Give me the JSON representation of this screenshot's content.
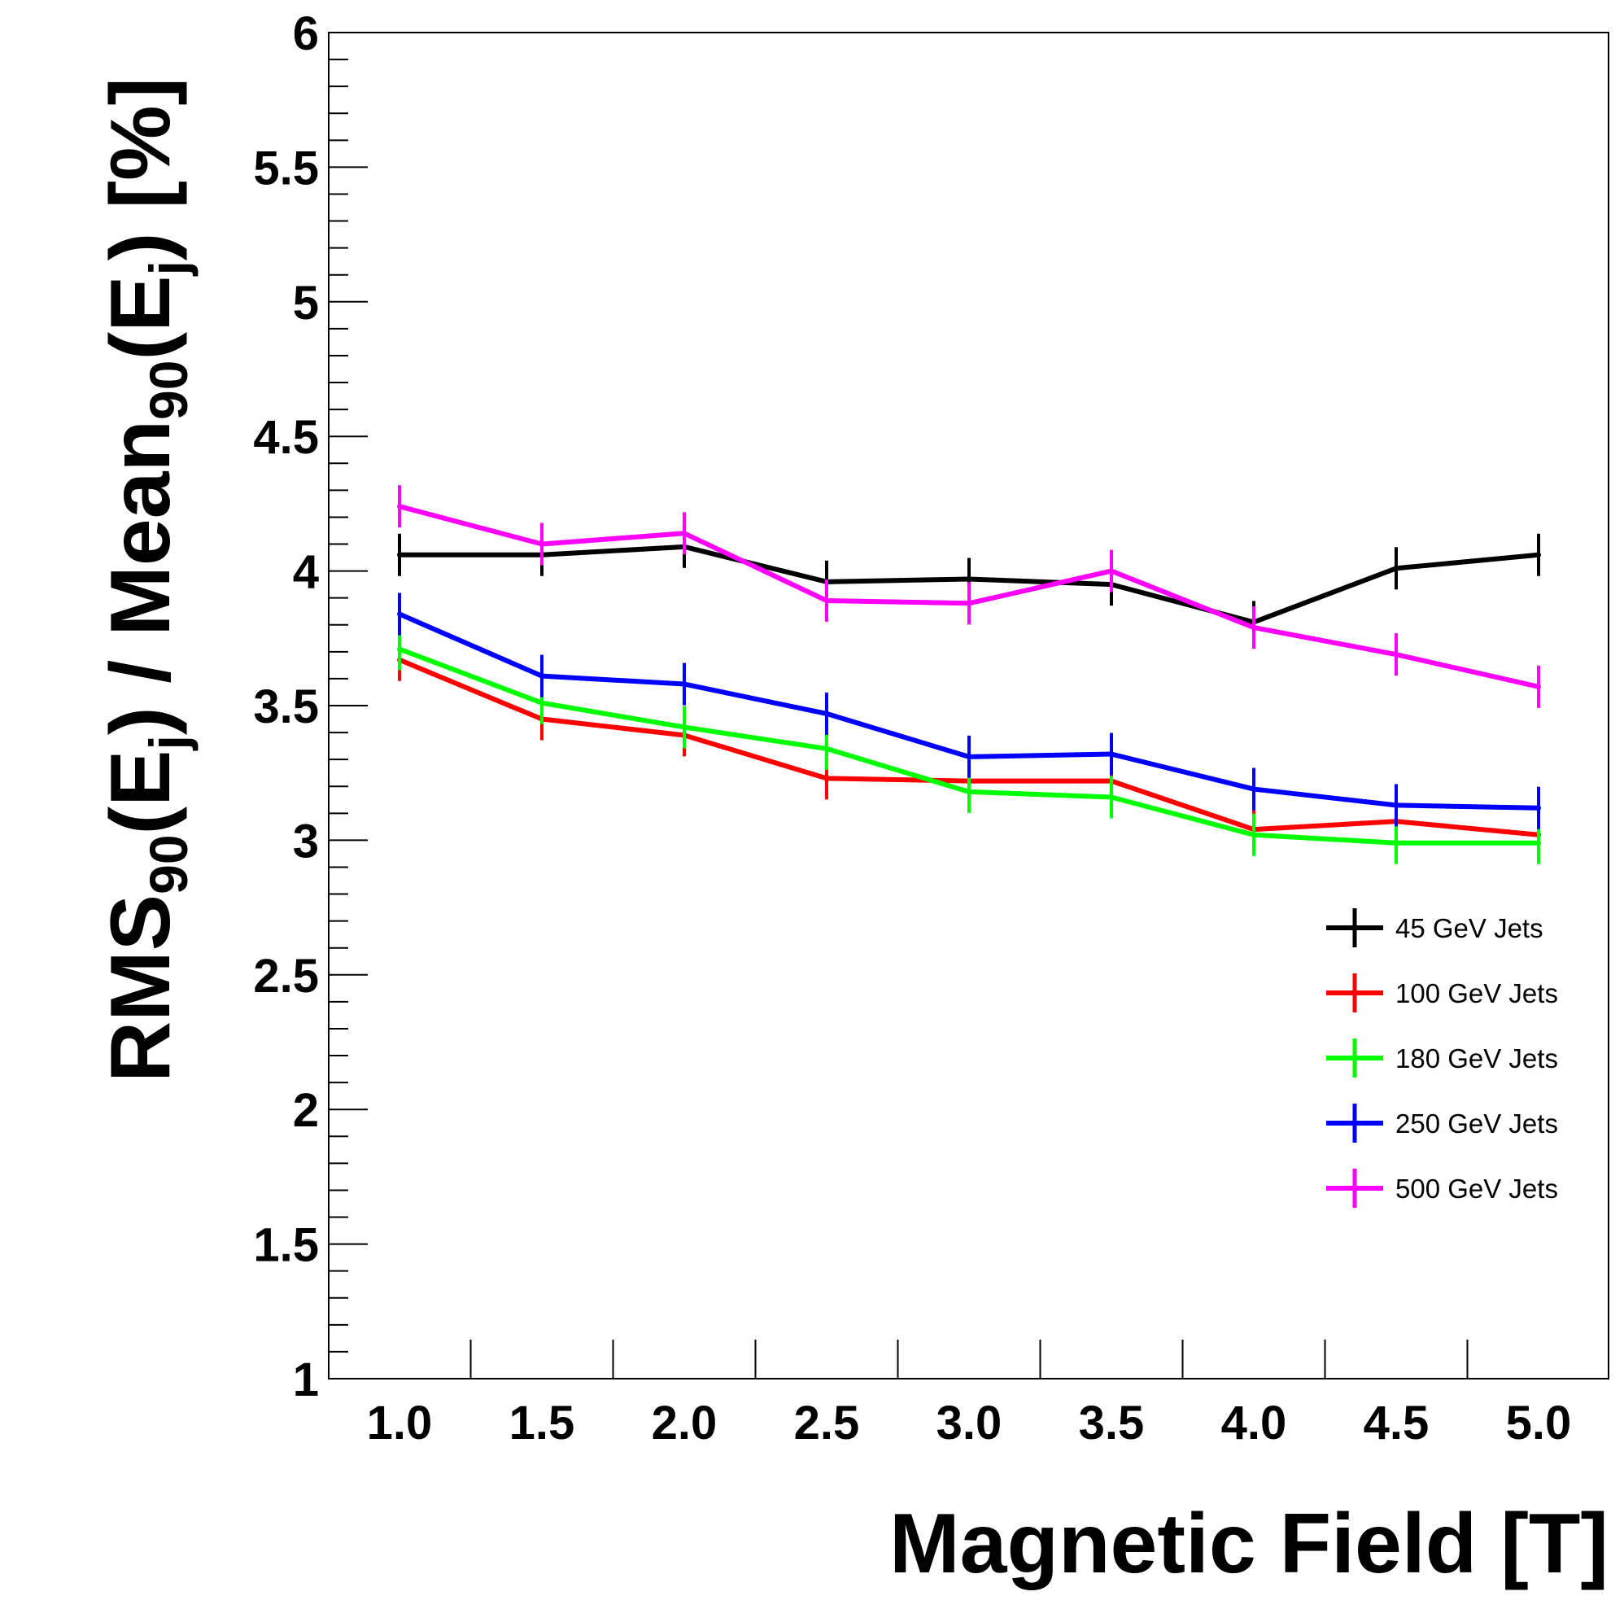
{
  "chart_data": {
    "type": "line",
    "xlabel": "Magnetic Field [T]",
    "ylabel": {
      "parts": [
        {
          "text": "RMS",
          "sub": false
        },
        {
          "text": "90",
          "sub": true
        },
        {
          "text": "(E",
          "sub": false
        },
        {
          "text": "j",
          "sub": true
        },
        {
          "text": ") / Mean",
          "sub": false
        },
        {
          "text": "90",
          "sub": true
        },
        {
          "text": "(E",
          "sub": false
        },
        {
          "text": "j",
          "sub": true
        },
        {
          "text": ") [%]",
          "sub": false
        }
      ]
    },
    "xlim": [
      0.75,
      5.25
    ],
    "ylim": [
      1,
      6
    ],
    "x": [
      1.0,
      1.5,
      2.0,
      2.5,
      3.0,
      3.5,
      4.0,
      4.5,
      5.0
    ],
    "x_tick_labels": [
      "1.0",
      "1.5",
      "2.0",
      "2.5",
      "3.0",
      "3.5",
      "4.0",
      "4.5",
      "5.0"
    ],
    "y_ticks": [
      1,
      1.5,
      2,
      2.5,
      3,
      3.5,
      4,
      4.5,
      5,
      5.5,
      6
    ],
    "y_tick_labels": [
      "1",
      "1.5",
      "2",
      "2.5",
      "3",
      "3.5",
      "4",
      "4.5",
      "5",
      "5.5",
      "6"
    ],
    "legend_position": "right",
    "grid": false,
    "series": [
      {
        "name": "45 GeV Jets",
        "color": "#000000",
        "values": [
          4.06,
          4.06,
          4.09,
          3.96,
          3.97,
          3.95,
          3.81,
          4.01,
          4.06
        ],
        "error": 0.04
      },
      {
        "name": "100 GeV Jets",
        "color": "#ff0000",
        "values": [
          3.67,
          3.45,
          3.39,
          3.23,
          3.22,
          3.22,
          3.04,
          3.07,
          3.02
        ],
        "error": 0.04
      },
      {
        "name": "180 GeV Jets",
        "color": "#00ff00",
        "values": [
          3.71,
          3.51,
          3.42,
          3.34,
          3.18,
          3.16,
          3.02,
          2.99,
          2.99
        ],
        "error": 0.04
      },
      {
        "name": "250 GeV Jets",
        "color": "#0000ff",
        "values": [
          3.84,
          3.61,
          3.58,
          3.47,
          3.31,
          3.32,
          3.19,
          3.13,
          3.12
        ],
        "error": 0.04
      },
      {
        "name": "500 GeV Jets",
        "color": "#ff00ff",
        "values": [
          4.24,
          4.1,
          4.14,
          3.89,
          3.88,
          4.0,
          3.79,
          3.69,
          3.57
        ],
        "error": 0.05
      }
    ]
  }
}
